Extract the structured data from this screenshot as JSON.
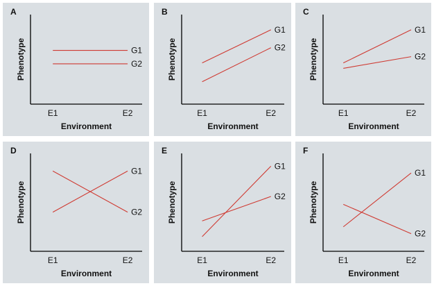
{
  "chart_data": [
    {
      "type": "line",
      "panel": "A",
      "xlabel": "Environment",
      "ylabel": "Phenotype",
      "categories": [
        "E1",
        "E2"
      ],
      "ylim": [
        0,
        10
      ],
      "series": [
        {
          "name": "G1",
          "values": [
            6.0,
            6.0
          ]
        },
        {
          "name": "G2",
          "values": [
            4.5,
            4.5
          ]
        }
      ]
    },
    {
      "type": "line",
      "panel": "B",
      "xlabel": "Environment",
      "ylabel": "Phenotype",
      "categories": [
        "E1",
        "E2"
      ],
      "ylim": [
        0,
        10
      ],
      "series": [
        {
          "name": "G1",
          "values": [
            4.6,
            8.3
          ]
        },
        {
          "name": "G2",
          "values": [
            2.5,
            6.3
          ]
        }
      ]
    },
    {
      "type": "line",
      "panel": "C",
      "xlabel": "Environment",
      "ylabel": "Phenotype",
      "categories": [
        "E1",
        "E2"
      ],
      "ylim": [
        0,
        10
      ],
      "series": [
        {
          "name": "G1",
          "values": [
            4.6,
            8.3
          ]
        },
        {
          "name": "G2",
          "values": [
            4.0,
            5.3
          ]
        }
      ]
    },
    {
      "type": "line",
      "panel": "D",
      "xlabel": "Environment",
      "ylabel": "Phenotype",
      "categories": [
        "E1",
        "E2"
      ],
      "ylim": [
        0,
        10
      ],
      "series": [
        {
          "name": "G1",
          "values": [
            4.0,
            8.2
          ]
        },
        {
          "name": "G2",
          "values": [
            8.2,
            4.0
          ]
        }
      ]
    },
    {
      "type": "line",
      "panel": "E",
      "xlabel": "Environment",
      "ylabel": "Phenotype",
      "categories": [
        "E1",
        "E2"
      ],
      "ylim": [
        0,
        10
      ],
      "series": [
        {
          "name": "G1",
          "values": [
            1.5,
            8.7
          ]
        },
        {
          "name": "G2",
          "values": [
            3.1,
            5.6
          ]
        }
      ]
    },
    {
      "type": "line",
      "panel": "F",
      "xlabel": "Environment",
      "ylabel": "Phenotype",
      "categories": [
        "E1",
        "E2"
      ],
      "ylim": [
        0,
        10
      ],
      "series": [
        {
          "name": "G1",
          "values": [
            2.5,
            8.0
          ]
        },
        {
          "name": "G2",
          "values": [
            4.8,
            1.8
          ]
        }
      ]
    }
  ]
}
